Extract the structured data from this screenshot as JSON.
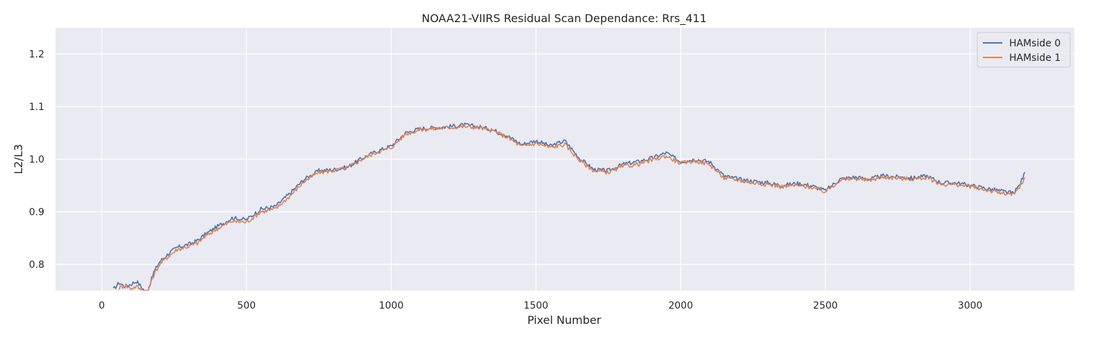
{
  "chart_data": {
    "type": "line",
    "title": "NOAA21-VIIRS Residual Scan Dependance: Rrs_411",
    "xlabel": "Pixel Number",
    "ylabel": "L2/L3",
    "xlim": [
      -160,
      3360
    ],
    "ylim": [
      0.75,
      1.25
    ],
    "xticks": [
      0,
      500,
      1000,
      1500,
      2000,
      2500,
      3000
    ],
    "yticks": [
      0.8,
      0.9,
      1.0,
      1.1,
      1.2
    ],
    "xtick_labels": [
      "0",
      "500",
      "1000",
      "1500",
      "2000",
      "2500",
      "3000"
    ],
    "ytick_labels": [
      "0.8",
      "0.9",
      "1.0",
      "1.1",
      "1.2"
    ],
    "grid": true,
    "legend_position": "top-right",
    "colors": {
      "background": "#eaeaf2",
      "grid": "#ffffff"
    },
    "series": [
      {
        "name": "HAMside 0",
        "color": "#4c72b0",
        "x": [
          40,
          60,
          80,
          100,
          120,
          140,
          150,
          160,
          180,
          200,
          230,
          260,
          300,
          330,
          360,
          400,
          450,
          500,
          550,
          600,
          650,
          700,
          750,
          800,
          850,
          900,
          950,
          1000,
          1050,
          1100,
          1150,
          1200,
          1250,
          1300,
          1350,
          1400,
          1450,
          1500,
          1550,
          1600,
          1650,
          1700,
          1750,
          1800,
          1850,
          1900,
          1950,
          2000,
          2050,
          2100,
          2150,
          2200,
          2250,
          2300,
          2350,
          2400,
          2450,
          2500,
          2550,
          2600,
          2650,
          2700,
          2750,
          2800,
          2850,
          2900,
          2950,
          3000,
          3050,
          3100,
          3150,
          3170,
          3190
        ],
        "y": [
          0.752,
          0.765,
          0.758,
          0.762,
          0.768,
          0.755,
          0.748,
          0.752,
          0.785,
          0.805,
          0.82,
          0.832,
          0.838,
          0.845,
          0.858,
          0.872,
          0.888,
          0.885,
          0.905,
          0.91,
          0.935,
          0.962,
          0.978,
          0.98,
          0.985,
          1.002,
          1.015,
          1.025,
          1.05,
          1.058,
          1.06,
          1.062,
          1.065,
          1.062,
          1.056,
          1.045,
          1.028,
          1.035,
          1.025,
          1.035,
          1.002,
          0.98,
          0.978,
          0.99,
          0.995,
          1.002,
          1.012,
          0.995,
          1.0,
          0.995,
          0.968,
          0.962,
          0.958,
          0.955,
          0.95,
          0.954,
          0.95,
          0.94,
          0.962,
          0.966,
          0.962,
          0.968,
          0.966,
          0.964,
          0.968,
          0.955,
          0.955,
          0.95,
          0.945,
          0.94,
          0.935,
          0.95,
          0.975
        ]
      },
      {
        "name": "HAMside 1",
        "color": "#dd8452",
        "x": [
          60,
          80,
          100,
          120,
          140,
          150,
          160,
          180,
          200,
          230,
          260,
          300,
          330,
          360,
          400,
          450,
          500,
          550,
          600,
          650,
          700,
          750,
          800,
          850,
          900,
          950,
          1000,
          1050,
          1100,
          1150,
          1200,
          1250,
          1300,
          1350,
          1400,
          1450,
          1500,
          1550,
          1600,
          1650,
          1700,
          1750,
          1800,
          1850,
          1900,
          1950,
          2000,
          2050,
          2100,
          2150,
          2200,
          2250,
          2300,
          2350,
          2400,
          2450,
          2500,
          2550,
          2600,
          2650,
          2700,
          2750,
          2800,
          2850,
          2900,
          2950,
          3000,
          3050,
          3100,
          3150,
          3170,
          3190
        ],
        "y": [
          0.755,
          0.76,
          0.754,
          0.758,
          0.75,
          0.748,
          0.75,
          0.78,
          0.8,
          0.815,
          0.828,
          0.834,
          0.84,
          0.854,
          0.868,
          0.882,
          0.88,
          0.9,
          0.905,
          0.93,
          0.958,
          0.975,
          0.978,
          0.984,
          1.0,
          1.013,
          1.022,
          1.048,
          1.056,
          1.058,
          1.06,
          1.062,
          1.06,
          1.054,
          1.042,
          1.024,
          1.03,
          1.022,
          1.028,
          0.998,
          0.978,
          0.975,
          0.986,
          0.99,
          0.998,
          1.006,
          0.992,
          0.997,
          0.99,
          0.964,
          0.96,
          0.955,
          0.952,
          0.948,
          0.95,
          0.947,
          0.938,
          0.96,
          0.963,
          0.96,
          0.966,
          0.964,
          0.962,
          0.965,
          0.952,
          0.952,
          0.948,
          0.942,
          0.936,
          0.932,
          0.945,
          0.965
        ]
      }
    ]
  }
}
